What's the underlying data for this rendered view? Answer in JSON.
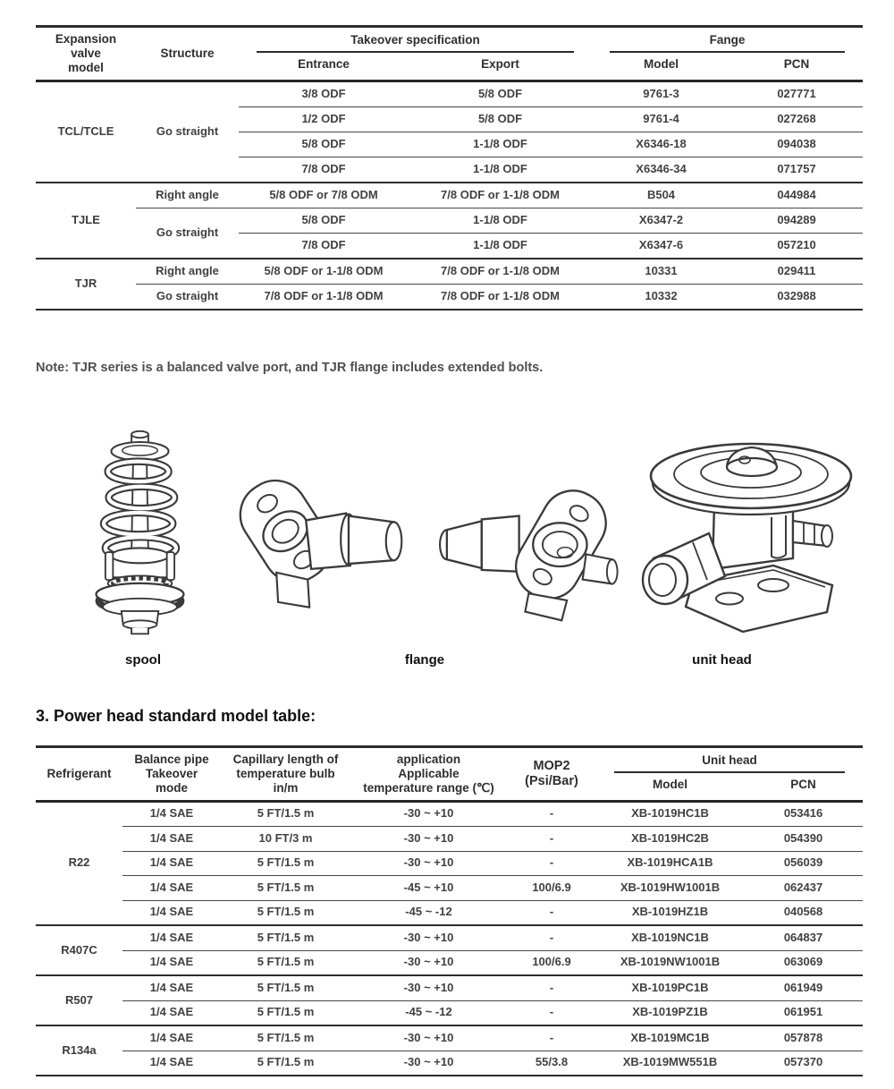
{
  "ink_color": "#3a3a3a",
  "note": "Note: TJR series is a balanced valve port, and TJR flange includes extended bolts.",
  "section_heading": "3. Power head standard model table:",
  "figures": [
    {
      "name": "spool",
      "label": "spool"
    },
    {
      "name": "flange",
      "label": "flange"
    },
    {
      "name": "unit head",
      "label": "unit head"
    }
  ],
  "spec_table": {
    "headers": {
      "model": "Expansion\nvalve\nmodel",
      "structure": "Structure",
      "takeover_specification": "Takeover specification",
      "entrance": "Entrance",
      "export": "Export",
      "fange": "Fange",
      "flange_model": "Model",
      "pcn": "PCN"
    },
    "groups": [
      {
        "model": "TCL/TCLE",
        "subs": [
          {
            "structure": "Go straight",
            "rows": [
              [
                "3/8 ODF",
                "5/8 ODF",
                "9761-3",
                "027771"
              ],
              [
                "1/2 ODF",
                "5/8 ODF",
                "9761-4",
                "027268"
              ],
              [
                "5/8 ODF",
                "1-1/8 ODF",
                "X6346-18",
                "094038"
              ],
              [
                "7/8 ODF",
                "1-1/8 ODF",
                "X6346-34",
                "071757"
              ]
            ]
          }
        ]
      },
      {
        "model": "TJLE",
        "subs": [
          {
            "structure": "Right angle",
            "rows": [
              [
                "5/8 ODF or 7/8 ODM",
                "7/8 ODF or 1-1/8 ODM",
                "B504",
                "044984"
              ]
            ]
          },
          {
            "structure": "Go straight",
            "rows": [
              [
                "5/8 ODF",
                "1-1/8 ODF",
                "X6347-2",
                "094289"
              ],
              [
                "7/8 ODF",
                "1-1/8 ODF",
                "X6347-6",
                "057210"
              ]
            ]
          }
        ]
      },
      {
        "model": "TJR",
        "subs": [
          {
            "structure": "Right angle",
            "rows": [
              [
                "5/8 ODF or 1-1/8 ODM",
                "7/8 ODF or 1-1/8 ODM",
                "10331",
                "029411"
              ]
            ]
          },
          {
            "structure": "Go straight",
            "rows": [
              [
                "7/8 ODF or 1-1/8 ODM",
                "7/8 ODF or 1-1/8 ODM",
                "10332",
                "032988"
              ]
            ]
          }
        ]
      }
    ]
  },
  "power_table": {
    "headers": {
      "refrigerant": "Refrigerant",
      "balance_pipe": "Balance pipe\nTakeover\nmode",
      "capillary": "Capillary length of\ntemperature bulb\nin/m",
      "application": "application\nApplicable\ntemperature range (℃)",
      "mop2": "MOP2\n(Psi/Bar)",
      "unit_head": "Unit head",
      "unit_model": "Model",
      "pcn": "PCN"
    },
    "groups": [
      {
        "refrigerant": "R22",
        "rows": [
          [
            "1/4 SAE",
            "5 FT/1.5 m",
            "-30 ~ +10",
            "-",
            "XB-1019HC1B",
            "053416"
          ],
          [
            "1/4 SAE",
            "10 FT/3 m",
            "-30 ~ +10",
            "-",
            "XB-1019HC2B",
            "054390"
          ],
          [
            "1/4 SAE",
            "5 FT/1.5 m",
            "-30 ~ +10",
            "-",
            "XB-1019HCA1B",
            "056039"
          ],
          [
            "1/4 SAE",
            "5 FT/1.5 m",
            "-45 ~ +10",
            "100/6.9",
            "XB-1019HW1001B",
            "062437"
          ],
          [
            "1/4 SAE",
            "5 FT/1.5 m",
            "-45 ~ -12",
            "-",
            "XB-1019HZ1B",
            "040568"
          ]
        ]
      },
      {
        "refrigerant": "R407C",
        "rows": [
          [
            "1/4 SAE",
            "5 FT/1.5 m",
            "-30 ~ +10",
            "-",
            "XB-1019NC1B",
            "064837"
          ],
          [
            "1/4 SAE",
            "5 FT/1.5 m",
            "-30 ~ +10",
            "100/6.9",
            "XB-1019NW1001B",
            "063069"
          ]
        ]
      },
      {
        "refrigerant": "R507",
        "rows": [
          [
            "1/4 SAE",
            "5 FT/1.5 m",
            "-30 ~ +10",
            "-",
            "XB-1019PC1B",
            "061949"
          ],
          [
            "1/4 SAE",
            "5 FT/1.5 m",
            "-45 ~ -12",
            "-",
            "XB-1019PZ1B",
            "061951"
          ]
        ]
      },
      {
        "refrigerant": "R134a",
        "rows": [
          [
            "1/4 SAE",
            "5 FT/1.5 m",
            "-30 ~ +10",
            "-",
            "XB-1019MC1B",
            "057878"
          ],
          [
            "1/4 SAE",
            "5 FT/1.5 m",
            "-30 ~ +10",
            "55/3.8",
            "XB-1019MW551B",
            "057370"
          ]
        ]
      }
    ]
  }
}
